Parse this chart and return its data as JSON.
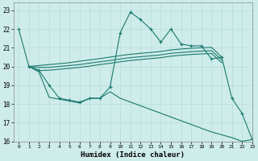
{
  "xlabel": "Humidex (Indice chaleur)",
  "bg_color": "#ceecea",
  "grid_color": "#b8ddd9",
  "line_color": "#1a7a6e",
  "xlim": [
    -0.5,
    23
  ],
  "ylim": [
    16,
    23.4
  ],
  "yticks": [
    16,
    17,
    18,
    19,
    20,
    21,
    22,
    23
  ],
  "xticks": [
    0,
    1,
    2,
    3,
    4,
    5,
    6,
    7,
    8,
    9,
    10,
    11,
    12,
    13,
    14,
    15,
    16,
    17,
    18,
    19,
    20,
    21,
    22,
    23
  ],
  "series": [
    {
      "x": [
        0,
        1,
        2,
        3,
        4,
        5,
        6,
        7,
        8,
        9,
        10,
        11,
        12,
        13,
        14,
        15,
        16,
        17,
        18,
        19,
        20,
        21,
        22,
        23
      ],
      "y": [
        22,
        20,
        19.8,
        19.0,
        18.3,
        18.2,
        18.1,
        18.3,
        18.3,
        18.9,
        21.8,
        22.9,
        22.5,
        22.0,
        21.3,
        22.0,
        21.2,
        21.1,
        21.1,
        20.4,
        20.5,
        18.3,
        17.5,
        16.1
      ],
      "marker": true
    },
    {
      "x": [
        1,
        2,
        3,
        4,
        5,
        6,
        7,
        8,
        9,
        10,
        11,
        12,
        13,
        14,
        15,
        16,
        17,
        18,
        19,
        20
      ],
      "y": [
        20.0,
        20.05,
        20.1,
        20.15,
        20.2,
        20.28,
        20.35,
        20.42,
        20.5,
        20.58,
        20.65,
        20.7,
        20.75,
        20.8,
        20.88,
        20.93,
        20.97,
        21.0,
        21.02,
        20.5
      ],
      "marker": false
    },
    {
      "x": [
        1,
        2,
        3,
        4,
        5,
        6,
        7,
        8,
        9,
        10,
        11,
        12,
        13,
        14,
        15,
        16,
        17,
        18,
        19,
        20
      ],
      "y": [
        20.0,
        19.95,
        19.95,
        20.0,
        20.05,
        20.1,
        20.18,
        20.25,
        20.32,
        20.4,
        20.47,
        20.52,
        20.57,
        20.62,
        20.7,
        20.75,
        20.79,
        20.82,
        20.84,
        20.35
      ],
      "marker": false
    },
    {
      "x": [
        1,
        2,
        3,
        4,
        5,
        6,
        7,
        8,
        9,
        10,
        11,
        12,
        13,
        14,
        15,
        16,
        17,
        18,
        19,
        20
      ],
      "y": [
        20.0,
        19.78,
        19.8,
        19.85,
        19.9,
        19.95,
        20.02,
        20.1,
        20.17,
        20.25,
        20.32,
        20.37,
        20.42,
        20.47,
        20.55,
        20.6,
        20.64,
        20.67,
        20.69,
        20.2
      ],
      "marker": false
    },
    {
      "x": [
        1,
        2,
        3,
        4,
        5,
        6,
        7,
        8,
        9,
        10,
        11,
        12,
        13,
        14,
        15,
        16,
        17,
        18,
        19,
        20,
        21,
        22,
        23
      ],
      "y": [
        20.0,
        19.7,
        18.35,
        18.25,
        18.15,
        18.05,
        18.3,
        18.3,
        18.65,
        18.3,
        18.1,
        17.9,
        17.7,
        17.5,
        17.3,
        17.1,
        16.9,
        16.7,
        16.5,
        16.35,
        16.2,
        16.0,
        16.1
      ],
      "marker": false
    }
  ]
}
